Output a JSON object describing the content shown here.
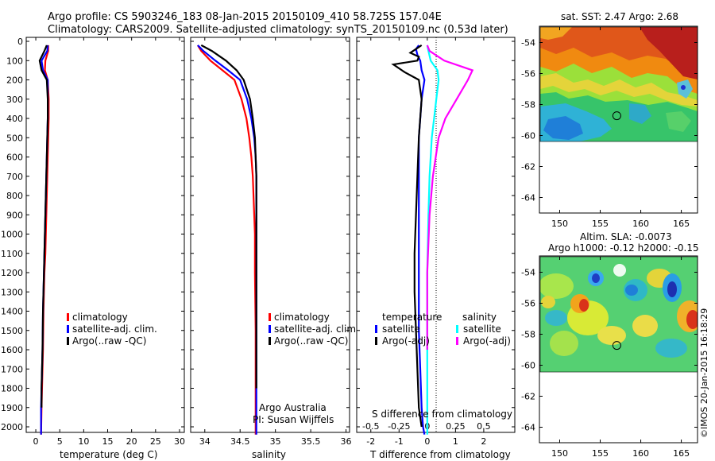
{
  "header": {
    "line1": "Argo profile: CS 5903246_183 08-Jan-2015 20150109_410 58.725S 157.04E",
    "line2": "Climatology: CARS2009. Satellite-adjusted climatology: synTS_20150109.nc (0.53d later)"
  },
  "colors": {
    "climatology": "#ff0000",
    "satellite": "#0000ff",
    "argo": "#000000",
    "salinity_satellite": "#00ffff",
    "salinity_argo": "#ff00ff"
  },
  "chart_data": [
    {
      "type": "line",
      "xlabel": "temperature (deg C)",
      "xlim": [
        -2,
        31
      ],
      "xticks": [
        "0",
        "5",
        "10",
        "15",
        "20",
        "25",
        "30"
      ],
      "ylim": [
        2050,
        0
      ],
      "yticks": [
        "0",
        "100",
        "200",
        "300",
        "400",
        "500",
        "600",
        "700",
        "800",
        "900",
        "1000",
        "1100",
        "1200",
        "1300",
        "1400",
        "1500",
        "1600",
        "1700",
        "1800",
        "1900",
        "2000"
      ],
      "legend": [
        "climatology",
        "satellite-adj. clim.",
        "Argo(..raw -QC)"
      ],
      "series": [
        {
          "name": "climatology",
          "color": "#ff0000",
          "x": [
            2.6,
            2.6,
            2.0,
            1.9,
            2.5,
            2.7,
            2.7,
            2.6,
            2.5,
            2.4,
            2.3,
            2.2,
            2.1,
            2.0,
            1.8,
            1.6,
            1.5,
            1.4,
            1.3,
            1.2,
            1.1
          ],
          "y": [
            20,
            50,
            100,
            150,
            200,
            300,
            400,
            500,
            600,
            700,
            800,
            900,
            1000,
            1100,
            1200,
            1400,
            1600,
            1700,
            1800,
            1900,
            2040
          ]
        },
        {
          "name": "satellite-adj. clim.",
          "color": "#0000ff",
          "x": [
            2.5,
            2.4,
            1.2,
            1.5,
            2.5,
            2.5,
            2.5,
            2.4,
            2.3,
            2.2,
            2.1,
            2.0,
            1.9,
            1.8,
            1.7,
            1.5,
            1.4,
            1.3,
            1.2,
            1.1,
            1.1
          ],
          "y": [
            20,
            50,
            100,
            150,
            200,
            300,
            400,
            500,
            600,
            700,
            800,
            900,
            1000,
            1100,
            1200,
            1400,
            1600,
            1700,
            1800,
            1900,
            2040
          ]
        },
        {
          "name": "Argo(..raw -QC)",
          "color": "#000000",
          "x": [
            2.3,
            1.8,
            0.8,
            1.2,
            2.3,
            2.5,
            2.5,
            2.4,
            2.3,
            2.2,
            2.1,
            2.0,
            1.9,
            1.8,
            1.7,
            1.5,
            1.4,
            1.3,
            1.2,
            1.2
          ],
          "y": [
            20,
            50,
            100,
            150,
            200,
            300,
            400,
            500,
            600,
            700,
            800,
            900,
            1000,
            1100,
            1200,
            1400,
            1600,
            1700,
            1800,
            1900
          ]
        }
      ]
    },
    {
      "type": "line",
      "xlabel": "salinity",
      "xlim": [
        33.8,
        36.05
      ],
      "xticks": [
        "34",
        "34.5",
        "35",
        "35.5",
        "36"
      ],
      "ylim": [
        2050,
        0
      ],
      "legend": [
        "climatology",
        "satellite-adj. clim.",
        "Argo(..raw -QC)"
      ],
      "annotation": [
        "Argo Australia",
        "PI: Susan Wijffels"
      ],
      "series": [
        {
          "name": "climatology",
          "color": "#ff0000",
          "x": [
            33.9,
            33.95,
            34.08,
            34.25,
            34.42,
            34.52,
            34.59,
            34.63,
            34.66,
            34.68,
            34.69,
            34.7,
            34.71,
            34.71,
            34.72,
            34.72,
            34.72
          ],
          "y": [
            20,
            50,
            100,
            150,
            200,
            300,
            400,
            500,
            600,
            700,
            800,
            900,
            1000,
            1200,
            1500,
            1800,
            2040
          ]
        },
        {
          "name": "satellite-adj. clim.",
          "color": "#0000ff",
          "x": [
            33.9,
            33.98,
            34.15,
            34.33,
            34.5,
            34.6,
            34.66,
            34.7,
            34.72,
            34.73,
            34.73,
            34.73,
            34.73,
            34.73,
            34.73,
            34.73,
            34.73
          ],
          "y": [
            20,
            50,
            100,
            150,
            200,
            300,
            400,
            500,
            600,
            700,
            800,
            900,
            1000,
            1200,
            1500,
            1800,
            2040
          ]
        },
        {
          "name": "Argo(..raw -QC)",
          "color": "#000000",
          "x": [
            33.95,
            34.1,
            34.3,
            34.45,
            34.55,
            34.64,
            34.68,
            34.71,
            34.72,
            34.73,
            34.73,
            34.73,
            34.73,
            34.73,
            34.73,
            34.73
          ],
          "y": [
            20,
            50,
            100,
            150,
            200,
            300,
            400,
            500,
            600,
            700,
            800,
            900,
            1000,
            1200,
            1500,
            1800
          ]
        }
      ]
    },
    {
      "type": "line",
      "xlabel": "T difference from climatology",
      "xlabel_top": "S difference from climatology",
      "xlim": [
        -2.5,
        3.1
      ],
      "xticks": [
        "-2",
        "-1",
        "0",
        "1",
        "2"
      ],
      "xticks_top": [
        "-0.5",
        "-0.25",
        "0",
        "0.25",
        "0.5"
      ],
      "ylim": [
        2050,
        0
      ],
      "legend_titles": [
        "temperature",
        "salinity"
      ],
      "legend": [
        "satellite",
        "Argo(-adj)",
        "satellite",
        "Argo(-adj)"
      ],
      "series": [
        {
          "name": "satellite",
          "group": "temperature",
          "color": "#0000ff",
          "x": [
            -0.3,
            -0.4,
            -0.35,
            -0.25,
            -0.2,
            -0.1,
            -0.2,
            -0.25,
            -0.3,
            -0.3,
            -0.3,
            -0.3,
            -0.3,
            -0.3,
            -0.25,
            -0.2,
            -0.15,
            -0.1
          ],
          "y": [
            20,
            40,
            70,
            100,
            150,
            200,
            300,
            400,
            500,
            700,
            900,
            1100,
            1300,
            1500,
            1700,
            1900,
            2000,
            2040
          ]
        },
        {
          "name": "Argo(-adj)",
          "group": "temperature",
          "color": "#000000",
          "x": [
            -0.2,
            -0.4,
            -0.6,
            -0.3,
            -0.35,
            -1.2,
            -0.8,
            -0.3,
            -0.2,
            -0.3,
            -0.35,
            -0.4,
            -0.45,
            -0.45,
            -0.4,
            -0.35,
            -0.3,
            -0.2
          ],
          "y": [
            20,
            40,
            60,
            80,
            100,
            120,
            160,
            200,
            300,
            500,
            700,
            900,
            1100,
            1300,
            1500,
            1700,
            1900,
            2000
          ]
        },
        {
          "name": "satellite",
          "group": "salinity",
          "color": "#00ffff",
          "x": [
            0.0,
            0.01,
            0.03,
            0.09,
            0.1,
            0.08,
            0.06,
            0.04,
            0.02,
            0.01,
            0.0,
            0.0,
            0.0
          ],
          "y": [
            20,
            50,
            100,
            150,
            200,
            300,
            400,
            500,
            700,
            900,
            1200,
            1600,
            2040
          ]
        },
        {
          "name": "Argo(-adj)",
          "group": "salinity",
          "color": "#ff00ff",
          "x": [
            0.0,
            0.02,
            0.15,
            0.4,
            0.36,
            0.26,
            0.16,
            0.1,
            0.05,
            0.02,
            0.0,
            0.0
          ],
          "y": [
            20,
            50,
            100,
            150,
            200,
            300,
            400,
            500,
            700,
            900,
            1200,
            1600
          ]
        }
      ]
    },
    {
      "type": "heatmap",
      "title": "sat. SST: 2.47 Argo: 2.68",
      "xlim": [
        147.5,
        167
      ],
      "xticks": [
        "150",
        "155",
        "160",
        "165"
      ],
      "ylim": [
        -65,
        -53
      ],
      "yticks": [
        "-54",
        "-56",
        "-58",
        "-60",
        "-62",
        "-64"
      ],
      "marker": {
        "lon": 157.04,
        "lat": -58.725
      }
    },
    {
      "type": "heatmap",
      "title": "Altim. SLA: -0.0073",
      "subtitle": "Argo h1000: -0.12 h2000: -0.15",
      "xlim": [
        147.5,
        167
      ],
      "xticks": [
        "150",
        "155",
        "160",
        "165"
      ],
      "ylim": [
        -65,
        -53
      ],
      "yticks": [
        "-54",
        "-56",
        "-58",
        "-60",
        "-62",
        "-64"
      ],
      "marker": {
        "lon": 157.04,
        "lat": -58.725
      }
    }
  ],
  "footer": {
    "stamp": "©IMOS 20-Jan-2015 16:18:29"
  }
}
